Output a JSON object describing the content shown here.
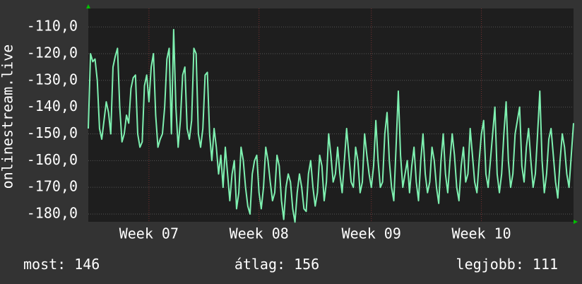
{
  "chart_data": {
    "type": "line",
    "ylabel": "onlinestream.live",
    "color": "#7ef0b0",
    "grid": true,
    "xlim": [
      0,
      216
    ],
    "xticks": [
      {
        "value": 27,
        "label": "Week 07"
      },
      {
        "value": 76,
        "label": "Week 08"
      },
      {
        "value": 126,
        "label": "Week 09"
      },
      {
        "value": 175,
        "label": "Week 10"
      }
    ],
    "ylim": [
      -182.9,
      -103.1
    ],
    "yticks": [
      {
        "value": -110,
        "label": "-110,0"
      },
      {
        "value": -120,
        "label": "-120,0"
      },
      {
        "value": -130,
        "label": "-130,0"
      },
      {
        "value": -140,
        "label": "-140,0"
      },
      {
        "value": -150,
        "label": "-150,0"
      },
      {
        "value": -160,
        "label": "-160,0"
      },
      {
        "value": -170,
        "label": "-170,0"
      },
      {
        "value": -180,
        "label": "-180,0"
      }
    ],
    "values": [
      -148,
      -120,
      -123,
      -122,
      -130,
      -148,
      -152,
      -145,
      -138,
      -142,
      -150,
      -125,
      -121,
      -118,
      -140,
      -153,
      -150,
      -143,
      -146,
      -133,
      -129,
      -128,
      -150,
      -155,
      -153,
      -132,
      -128,
      -138,
      -125,
      -120,
      -143,
      -155,
      -152,
      -150,
      -140,
      -122,
      -118,
      -150,
      -111,
      -140,
      -155,
      -145,
      -128,
      -125,
      -148,
      -152,
      -145,
      -118,
      -120,
      -150,
      -155,
      -148,
      -128,
      -127,
      -150,
      -160,
      -148,
      -155,
      -165,
      -158,
      -170,
      -155,
      -165,
      -175,
      -165,
      -160,
      -178,
      -172,
      -155,
      -160,
      -170,
      -177,
      -180,
      -165,
      -160,
      -158,
      -172,
      -178,
      -170,
      -155,
      -160,
      -168,
      -175,
      -172,
      -158,
      -162,
      -175,
      -182,
      -170,
      -165,
      -168,
      -178,
      -183,
      -172,
      -165,
      -170,
      -178,
      -179,
      -165,
      -160,
      -170,
      -177,
      -172,
      -158,
      -162,
      -175,
      -168,
      -150,
      -158,
      -168,
      -165,
      -155,
      -165,
      -172,
      -160,
      -148,
      -158,
      -168,
      -170,
      -155,
      -160,
      -172,
      -168,
      -150,
      -158,
      -165,
      -170,
      -162,
      -145,
      -160,
      -170,
      -168,
      -150,
      -142,
      -160,
      -170,
      -175,
      -155,
      -134,
      -158,
      -170,
      -165,
      -160,
      -172,
      -162,
      -155,
      -168,
      -175,
      -160,
      -150,
      -165,
      -172,
      -168,
      -155,
      -160,
      -170,
      -176,
      -160,
      -150,
      -165,
      -172,
      -160,
      -150,
      -158,
      -170,
      -175,
      -162,
      -155,
      -168,
      -165,
      -148,
      -158,
      -168,
      -172,
      -160,
      -150,
      -145,
      -165,
      -170,
      -160,
      -150,
      -140,
      -165,
      -172,
      -165,
      -150,
      -138,
      -160,
      -170,
      -165,
      -150,
      -145,
      -140,
      -162,
      -168,
      -155,
      -148,
      -160,
      -170,
      -165,
      -150,
      -134,
      -160,
      -172,
      -165,
      -152,
      -148,
      -158,
      -168,
      -174,
      -160,
      -150,
      -155,
      -165,
      -170,
      -158,
      -146
    ],
    "legend": [
      {
        "label": "most:",
        "value": 146
      },
      {
        "label": "átlag:",
        "value": 156
      },
      {
        "label": "legjobb:",
        "value": 111
      }
    ]
  }
}
